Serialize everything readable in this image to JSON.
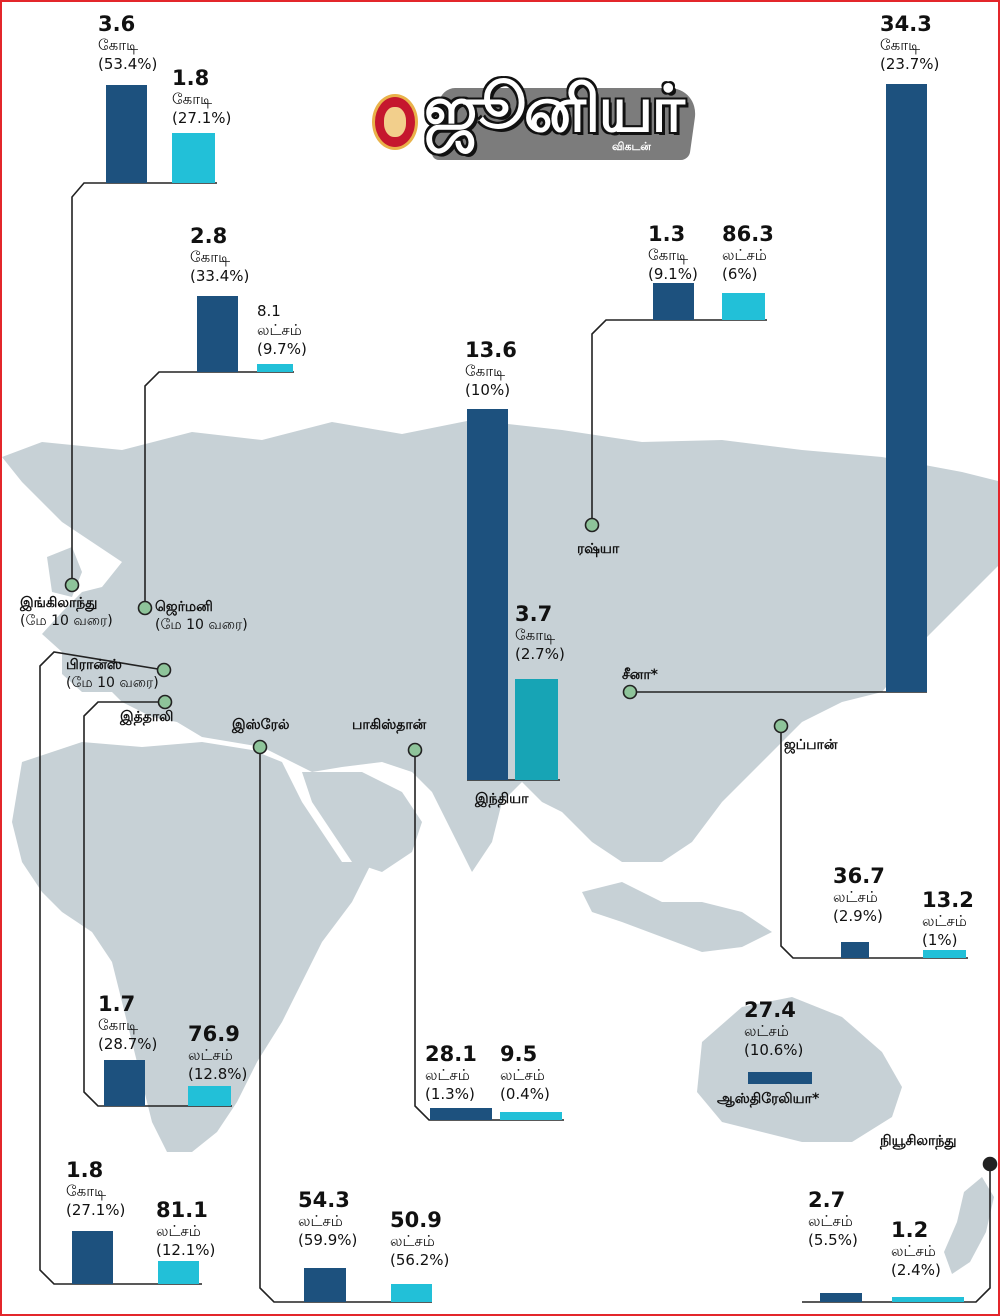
{
  "logo": {
    "word": "ஜூனியர்",
    "sub": "விகடன்"
  },
  "colors": {
    "dark_bar": "#1d517e",
    "light_bar": "#22c0d8",
    "india_light": "#17a4b5",
    "map": "#c7d1d6",
    "dot": "#8ec49a",
    "line": "#222222"
  },
  "chart_data": {
    "type": "bar",
    "series": [
      {
        "color_key": "dark_bar"
      },
      {
        "color_key": "light_bar"
      }
    ],
    "countries": [
      {
        "id": "uk",
        "name": "இங்கிலாந்து",
        "note": "(மே 10 வரை)",
        "values": [
          {
            "value": 3.6,
            "num": "3.6",
            "unit": "கோடி",
            "pct": "(53.4%)"
          },
          {
            "value": 1.8,
            "num": "1.8",
            "unit": "கோடி",
            "pct": "(27.1%)"
          }
        ]
      },
      {
        "id": "germany",
        "name": "ஜெர்மனி",
        "note": "(மே 10 வரை)",
        "values": [
          {
            "value": 2.8,
            "num": "2.8",
            "unit": "கோடி",
            "pct": "(33.4%)"
          },
          {
            "value": 0.081,
            "num": "8.1",
            "unit": "லட்சம்",
            "pct": "(9.7%)"
          }
        ]
      },
      {
        "id": "india",
        "name": "இந்தியா",
        "note": "",
        "values": [
          {
            "value": 13.6,
            "num": "13.6",
            "unit": "கோடி",
            "pct": "(10%)"
          },
          {
            "value": 3.7,
            "num": "3.7",
            "unit": "கோடி",
            "pct": "(2.7%)"
          }
        ]
      },
      {
        "id": "russia",
        "name": "ரஷ்யா",
        "note": "",
        "values": [
          {
            "value": 1.3,
            "num": "1.3",
            "unit": "கோடி",
            "pct": "(9.1%)"
          },
          {
            "value": 0.863,
            "num": "86.3",
            "unit": "லட்சம்",
            "pct": "(6%)"
          }
        ]
      },
      {
        "id": "china",
        "name": "சீனா*",
        "note": "",
        "values": [
          {
            "value": 34.3,
            "num": "34.3",
            "unit": "கோடி",
            "pct": "(23.7%)"
          }
        ]
      },
      {
        "id": "japan",
        "name": "ஜப்பான்",
        "note": "",
        "values": [
          {
            "value": 0.367,
            "num": "36.7",
            "unit": "லட்சம்",
            "pct": "(2.9%)"
          },
          {
            "value": 0.132,
            "num": "13.2",
            "unit": "லட்சம்",
            "pct": "(1%)"
          }
        ]
      },
      {
        "id": "australia",
        "name": "ஆஸ்திரேலியா*",
        "note": "",
        "values": [
          {
            "value": 0.274,
            "num": "27.4",
            "unit": "லட்சம்",
            "pct": "(10.6%)"
          }
        ]
      },
      {
        "id": "newzealand",
        "name": "நியூசிலாந்து",
        "note": "",
        "values": [
          {
            "value": 0.027,
            "num": "2.7",
            "unit": "லட்சம்",
            "pct": "(5.5%)"
          },
          {
            "value": 0.012,
            "num": "1.2",
            "unit": "லட்சம்",
            "pct": "(2.4%)"
          }
        ]
      },
      {
        "id": "israel",
        "name": "இஸ்ரேல்",
        "note": "",
        "values": [
          {
            "value": 0.543,
            "num": "54.3",
            "unit": "லட்சம்",
            "pct": "(59.9%)"
          },
          {
            "value": 0.509,
            "num": "50.9",
            "unit": "லட்சம்",
            "pct": "(56.2%)"
          }
        ]
      },
      {
        "id": "pakistan",
        "name": "பாகிஸ்தான்",
        "note": "",
        "values": [
          {
            "value": 0.281,
            "num": "28.1",
            "unit": "லட்சம்",
            "pct": "(1.3%)"
          },
          {
            "value": 0.095,
            "num": "9.5",
            "unit": "லட்சம்",
            "pct": "(0.4%)"
          }
        ]
      },
      {
        "id": "italy",
        "name": "இத்தாலி",
        "note": "",
        "values": [
          {
            "value": 1.7,
            "num": "1.7",
            "unit": "கோடி",
            "pct": "(28.7%)"
          },
          {
            "value": 0.769,
            "num": "76.9",
            "unit": "லட்சம்",
            "pct": "(12.8%)"
          }
        ]
      },
      {
        "id": "france",
        "name": "பிரான்ஸ்",
        "note": "(மே 10 வரை)",
        "values": [
          {
            "value": 1.8,
            "num": "1.8",
            "unit": "கோடி",
            "pct": "(27.1%)"
          },
          {
            "value": 0.811,
            "num": "81.1",
            "unit": "லட்சம்",
            "pct": "(12.1%)"
          }
        ]
      }
    ]
  }
}
